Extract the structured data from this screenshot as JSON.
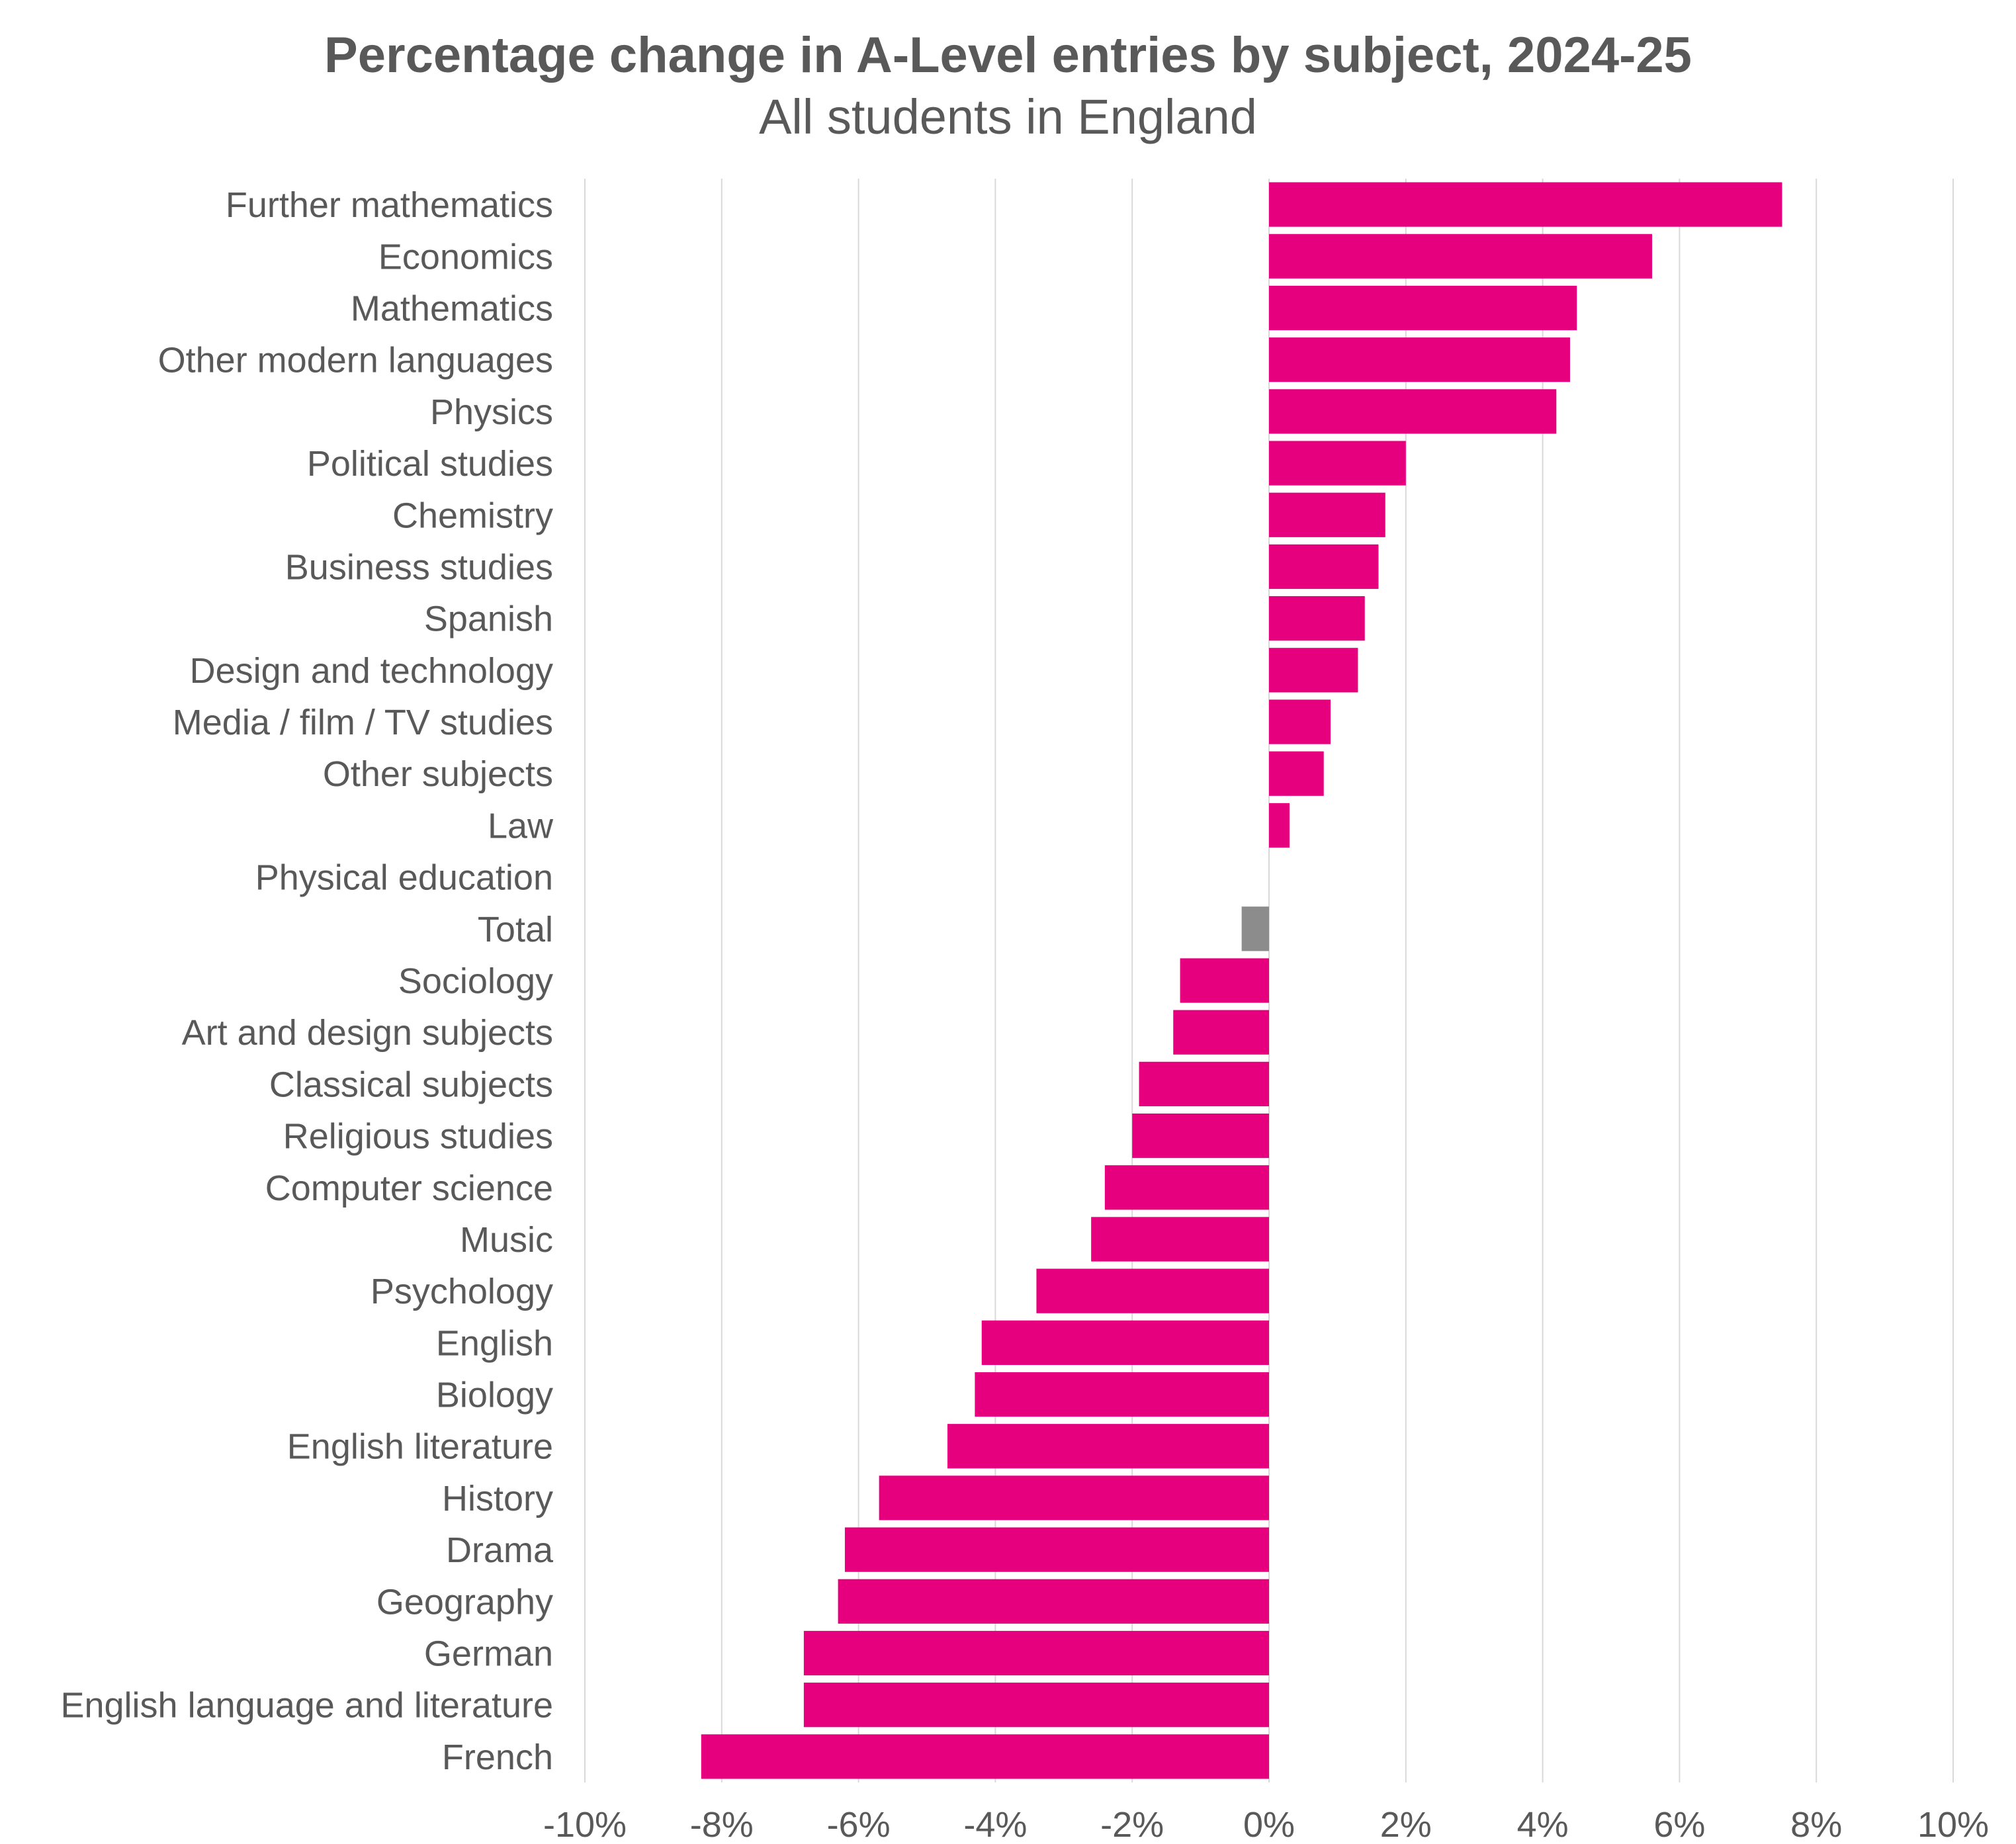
{
  "chart_data": {
    "type": "bar",
    "orientation": "horizontal",
    "title": "Percentage change in A-Level entries by subject, 2024-25",
    "subtitle": "All students in England",
    "categories": [
      "Further mathematics",
      "Economics",
      "Mathematics",
      "Other modern languages",
      "Physics",
      "Political studies",
      "Chemistry",
      "Business studies",
      "Spanish",
      "Design and technology",
      "Media / film / TV studies",
      "Other subjects",
      "Law",
      "Physical education",
      "Total",
      "Sociology",
      "Art and design subjects",
      "Classical subjects",
      "Religious studies",
      "Computer science",
      "Music",
      "Psychology",
      "English",
      "Biology",
      "English literature",
      "History",
      "Drama",
      "Geography",
      "German",
      "English language and literature",
      "French"
    ],
    "values": [
      7.5,
      5.6,
      4.5,
      4.4,
      4.2,
      2.0,
      1.7,
      1.6,
      1.4,
      1.3,
      0.9,
      0.8,
      0.3,
      0.0,
      -0.4,
      -1.3,
      -1.4,
      -1.9,
      -2.0,
      -2.4,
      -2.6,
      -3.4,
      -4.2,
      -4.3,
      -4.7,
      -5.7,
      -6.2,
      -6.3,
      -6.8,
      -6.8,
      -8.3
    ],
    "xlim": [
      -10,
      10
    ],
    "x_ticks": [
      -10,
      -8,
      -6,
      -4,
      -2,
      0,
      2,
      4,
      6,
      8,
      10
    ],
    "x_tick_labels": [
      "-10%",
      "-8%",
      "-6%",
      "-4%",
      "-2%",
      "0%",
      "2%",
      "4%",
      "6%",
      "8%",
      "10%"
    ],
    "grid": "vertical",
    "legend": "none",
    "colors": {
      "bar": "#E6007E",
      "highlight": "#8C8C8C",
      "grid": "#D9D9D9",
      "text": "#595959"
    },
    "highlight_category": "Total"
  }
}
